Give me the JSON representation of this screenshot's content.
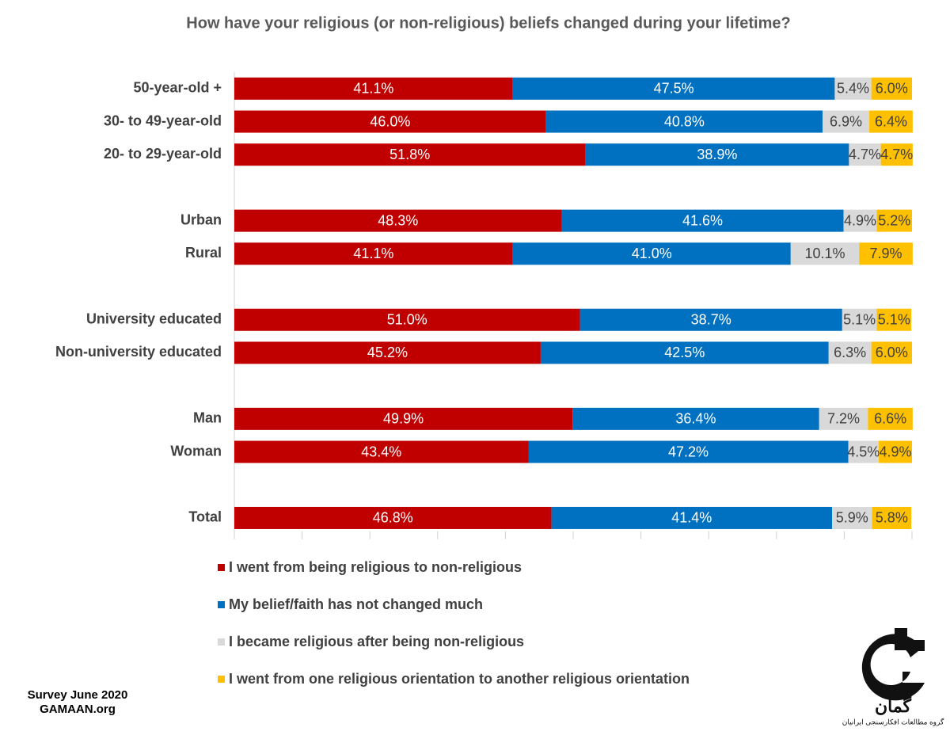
{
  "chart_data": {
    "type": "stacked-bar-horizontal",
    "title": "How have your religious (or non-religious) beliefs changed during your lifetime?",
    "categories": [
      "50-year-old +",
      "30- to 49-year-old",
      "20- to 29-year-old",
      null,
      "Urban",
      "Rural",
      null,
      "University educated",
      "Non-university educated",
      null,
      "Man",
      "Woman",
      null,
      "Total"
    ],
    "series": [
      {
        "name": "I went from being religious to non-religious",
        "color": "#c00000",
        "label_color": "#ffffff",
        "values": [
          41.1,
          46.0,
          51.8,
          null,
          48.3,
          41.1,
          null,
          51.0,
          45.2,
          null,
          49.9,
          43.4,
          null,
          46.8
        ],
        "value_labels": [
          "41.1%",
          "46.0%",
          "51.8%",
          null,
          "48.3%",
          "41.1%",
          null,
          "51.0%",
          "45.2%",
          null,
          "49.9%",
          "43.4%",
          null,
          "46.8%"
        ]
      },
      {
        "name": "My belief/faith has not changed much",
        "color": "#0070c0",
        "label_color": "#ffffff",
        "values": [
          47.5,
          40.8,
          38.9,
          null,
          41.6,
          41.0,
          null,
          38.7,
          42.5,
          null,
          36.4,
          47.2,
          null,
          41.4
        ],
        "value_labels": [
          "47.5%",
          "40.8%",
          "38.9%",
          null,
          "41.6%",
          "41.0%",
          null,
          "38.7%",
          "42.5%",
          null,
          "36.4%",
          "47.2%",
          null,
          "41.4%"
        ]
      },
      {
        "name": "I became religious after being non-religious",
        "color": "#d9d9d9",
        "label_color": "#404040",
        "values": [
          5.4,
          6.9,
          4.7,
          null,
          4.9,
          10.1,
          null,
          5.1,
          6.3,
          null,
          7.2,
          4.5,
          null,
          5.9
        ],
        "value_labels": [
          "5.4%",
          "6.9%",
          "4.7%",
          null,
          "4.9%",
          "10.1%",
          null,
          "5.1%",
          "6.3%",
          null,
          "7.2%",
          "4.5%",
          null,
          "5.9%"
        ]
      },
      {
        "name": "I went from one religious orientation to another religious orientation",
        "color": "#ffc000",
        "label_color": "#404040",
        "values": [
          6.0,
          6.4,
          4.7,
          null,
          5.2,
          7.9,
          null,
          5.1,
          6.0,
          null,
          6.6,
          4.9,
          null,
          5.8
        ],
        "value_labels": [
          "6.0%",
          "6.4%",
          "4.7%",
          null,
          "5.2%",
          "7.9%",
          null,
          "5.1%",
          "6.0%",
          null,
          "6.6%",
          "4.9%",
          null,
          "5.8%"
        ]
      }
    ],
    "xlim": [
      0,
      100
    ],
    "xticks": [
      0,
      10,
      20,
      30,
      40,
      50,
      60,
      70,
      80,
      90,
      100
    ],
    "legend": "bottom",
    "annotations": [
      "Survey June 2020",
      "GAMAAN.org"
    ],
    "logo_text": [
      "گمان",
      "گروه مطالعات افکارسنجی ایرانیان"
    ]
  }
}
